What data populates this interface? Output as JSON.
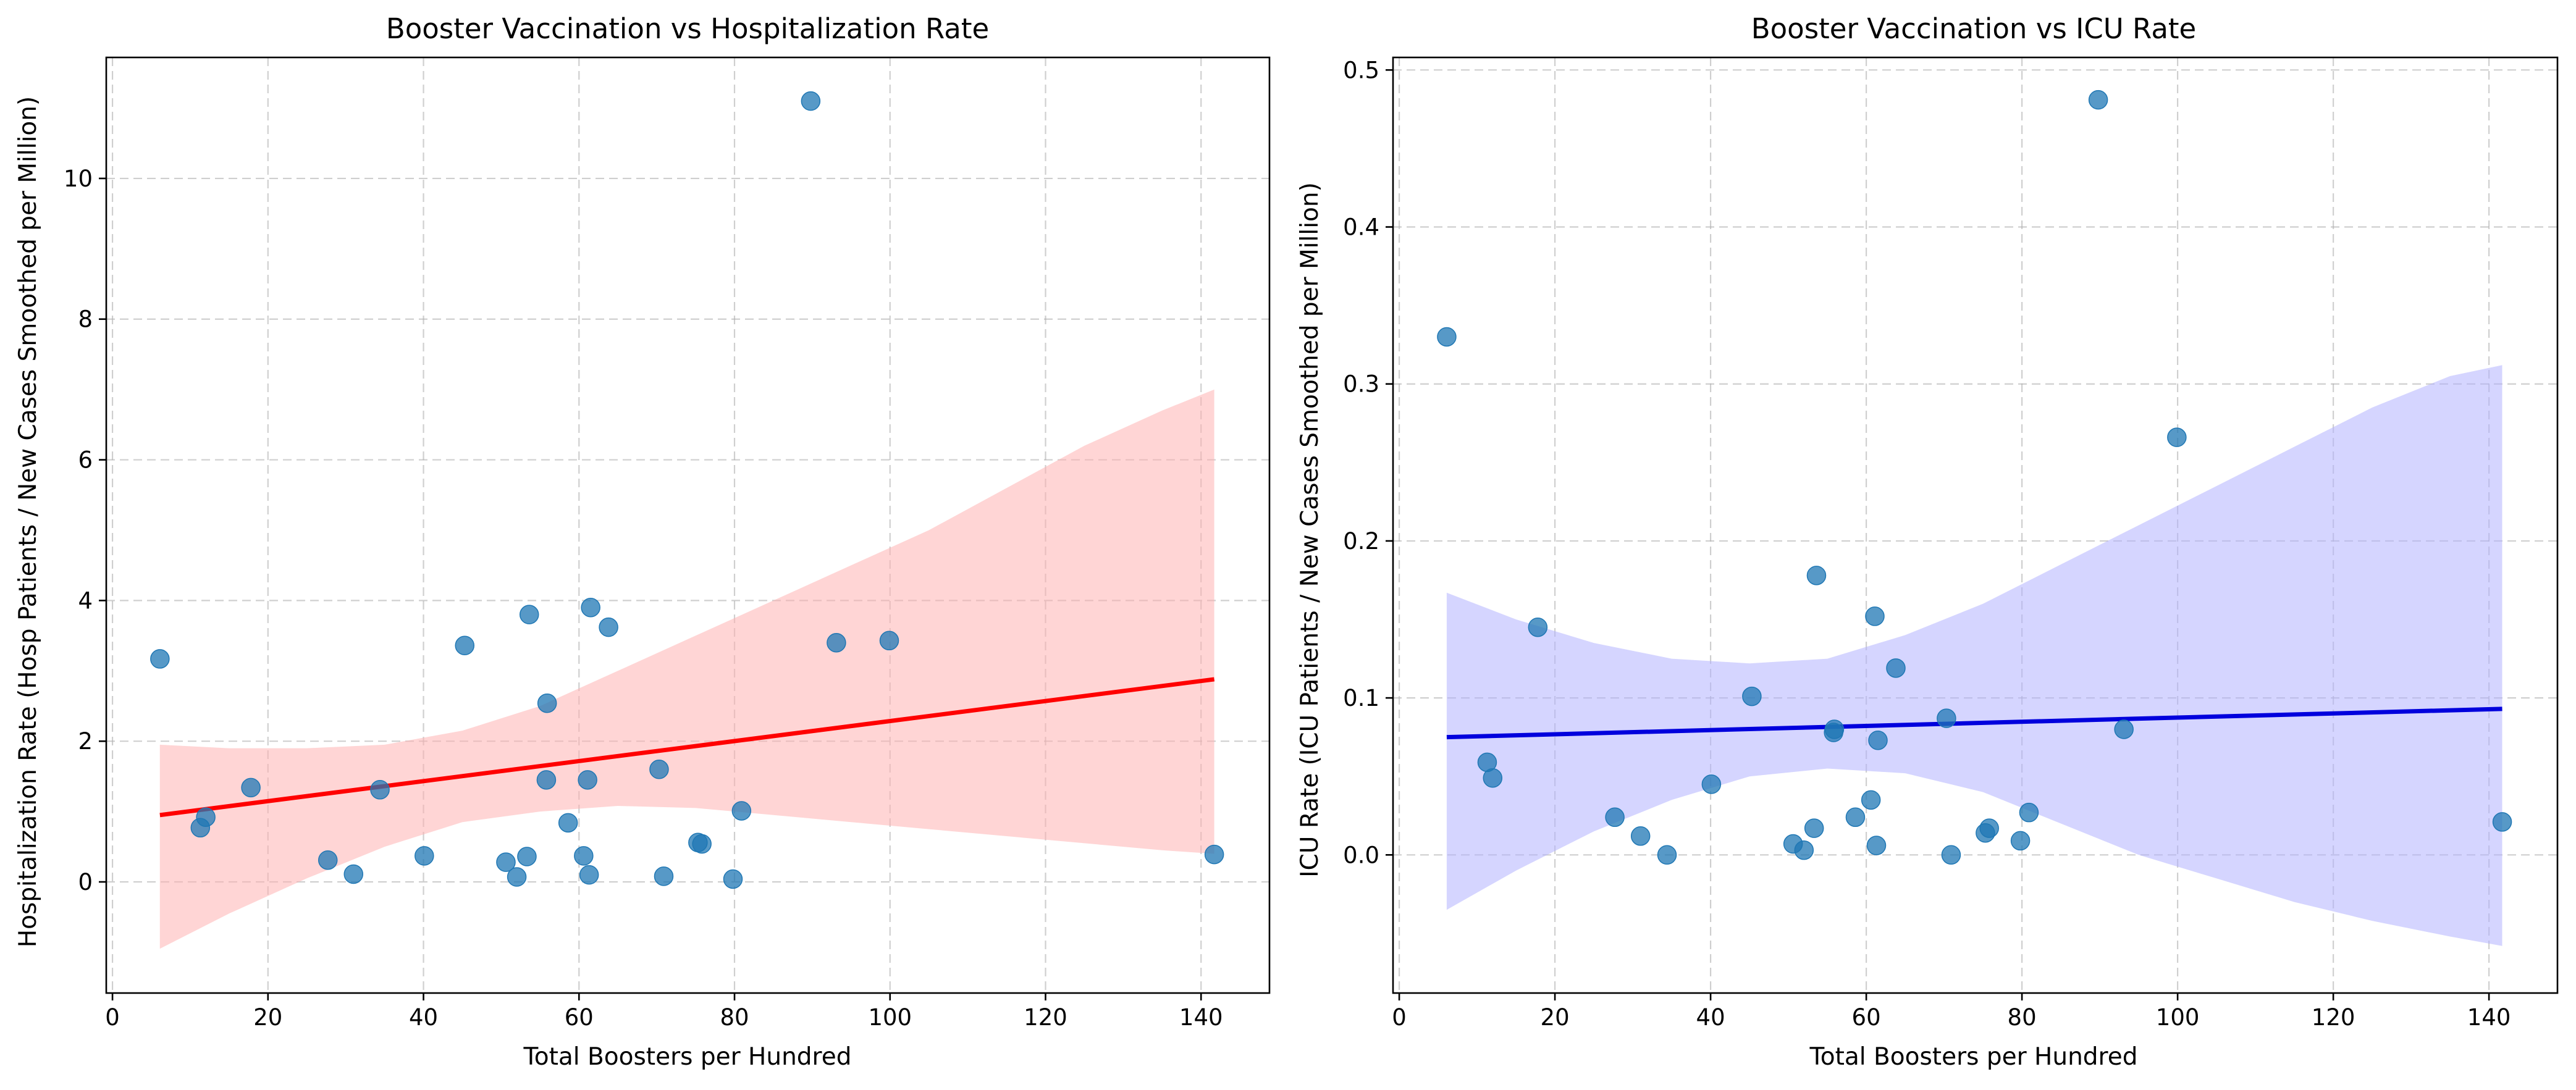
{
  "chart_data": [
    {
      "type": "scatter",
      "title": "Booster Vaccination vs Hospitalization Rate",
      "xlabel": "Total Boosters per Hundred",
      "ylabel": "Hospitalization Rate (Hosp Patients / New Cases Smoothed per Million)",
      "xlim": [
        -0.8,
        148.8
      ],
      "ylim": [
        -1.58,
        11.72
      ],
      "xticks": [
        0,
        20,
        40,
        60,
        80,
        100,
        120,
        140
      ],
      "yticks": [
        0,
        2,
        4,
        6,
        8,
        10
      ],
      "grid": true,
      "colors": {
        "points": "#1f77b4",
        "line": "#ff0000",
        "band": "#ffb3b3"
      },
      "points": [
        {
          "x": 6.1,
          "y": 3.17
        },
        {
          "x": 11.3,
          "y": 0.77
        },
        {
          "x": 12.0,
          "y": 0.92
        },
        {
          "x": 17.8,
          "y": 1.34
        },
        {
          "x": 27.7,
          "y": 0.31
        },
        {
          "x": 31.0,
          "y": 0.11
        },
        {
          "x": 34.4,
          "y": 1.31
        },
        {
          "x": 40.1,
          "y": 0.37
        },
        {
          "x": 45.3,
          "y": 3.36
        },
        {
          "x": 50.6,
          "y": 0.28
        },
        {
          "x": 52.0,
          "y": 0.07
        },
        {
          "x": 53.3,
          "y": 0.36
        },
        {
          "x": 53.6,
          "y": 3.8
        },
        {
          "x": 55.8,
          "y": 1.45
        },
        {
          "x": 55.9,
          "y": 2.54
        },
        {
          "x": 58.6,
          "y": 0.84
        },
        {
          "x": 60.6,
          "y": 0.37
        },
        {
          "x": 61.1,
          "y": 1.45
        },
        {
          "x": 61.3,
          "y": 0.1
        },
        {
          "x": 61.5,
          "y": 3.9
        },
        {
          "x": 63.8,
          "y": 3.62
        },
        {
          "x": 70.3,
          "y": 1.6
        },
        {
          "x": 70.9,
          "y": 0.08
        },
        {
          "x": 75.3,
          "y": 0.56
        },
        {
          "x": 75.8,
          "y": 0.54
        },
        {
          "x": 79.8,
          "y": 0.04
        },
        {
          "x": 80.9,
          "y": 1.01
        },
        {
          "x": 89.8,
          "y": 11.1
        },
        {
          "x": 93.1,
          "y": 3.4
        },
        {
          "x": 99.9,
          "y": 3.43
        },
        {
          "x": 141.7,
          "y": 0.39
        }
      ],
      "regression": {
        "x": [
          6.1,
          141.7
        ],
        "y": [
          0.95,
          2.88
        ]
      },
      "band": {
        "x": [
          6.1,
          15,
          25,
          35,
          45,
          55,
          65,
          75,
          85,
          95,
          105,
          115,
          125,
          135,
          141.7
        ],
        "lower": [
          -0.95,
          -0.45,
          0.05,
          0.5,
          0.85,
          1.0,
          1.08,
          1.05,
          0.95,
          0.85,
          0.75,
          0.65,
          0.55,
          0.45,
          0.4
        ],
        "upper": [
          1.95,
          1.9,
          1.9,
          1.95,
          2.15,
          2.5,
          3.0,
          3.5,
          4.0,
          4.5,
          5.0,
          5.6,
          6.2,
          6.7,
          7.0
        ]
      }
    },
    {
      "type": "scatter",
      "title": "Booster Vaccination vs ICU Rate",
      "xlabel": "Total Boosters per Hundred",
      "ylabel": "ICU Rate (ICU Patients / New Cases Smoothed per Million)",
      "xlim": [
        -0.8,
        148.8
      ],
      "ylim": [
        -0.088,
        0.508
      ],
      "xticks": [
        0,
        20,
        40,
        60,
        80,
        100,
        120,
        140
      ],
      "yticks": [
        0.0,
        0.1,
        0.2,
        0.3,
        0.4,
        0.5
      ],
      "grid": true,
      "colors": {
        "points": "#1f77b4",
        "line": "#0000dd",
        "band": "#b3b3ff"
      },
      "points": [
        {
          "x": 6.1,
          "y": 0.33
        },
        {
          "x": 11.3,
          "y": 0.059
        },
        {
          "x": 12.0,
          "y": 0.049
        },
        {
          "x": 17.8,
          "y": 0.145
        },
        {
          "x": 27.7,
          "y": 0.024
        },
        {
          "x": 31.0,
          "y": 0.012
        },
        {
          "x": 34.4,
          "y": 0.0
        },
        {
          "x": 40.1,
          "y": 0.045
        },
        {
          "x": 45.3,
          "y": 0.101
        },
        {
          "x": 50.6,
          "y": 0.007
        },
        {
          "x": 52.0,
          "y": 0.003
        },
        {
          "x": 53.3,
          "y": 0.017
        },
        {
          "x": 53.6,
          "y": 0.178
        },
        {
          "x": 55.8,
          "y": 0.078
        },
        {
          "x": 55.9,
          "y": 0.08
        },
        {
          "x": 58.6,
          "y": 0.024
        },
        {
          "x": 60.6,
          "y": 0.035
        },
        {
          "x": 61.1,
          "y": 0.152
        },
        {
          "x": 61.3,
          "y": 0.006
        },
        {
          "x": 61.5,
          "y": 0.073
        },
        {
          "x": 63.8,
          "y": 0.119
        },
        {
          "x": 70.3,
          "y": 0.087
        },
        {
          "x": 70.9,
          "y": 0.0
        },
        {
          "x": 75.3,
          "y": 0.014
        },
        {
          "x": 75.8,
          "y": 0.017
        },
        {
          "x": 79.8,
          "y": 0.009
        },
        {
          "x": 80.9,
          "y": 0.027
        },
        {
          "x": 89.8,
          "y": 0.481
        },
        {
          "x": 93.1,
          "y": 0.08
        },
        {
          "x": 99.9,
          "y": 0.266
        },
        {
          "x": 141.7,
          "y": 0.021
        }
      ],
      "regression": {
        "x": [
          6.1,
          141.7
        ],
        "y": [
          0.075,
          0.093
        ]
      },
      "band": {
        "x": [
          6.1,
          15,
          25,
          35,
          45,
          55,
          65,
          75,
          85,
          95,
          105,
          115,
          125,
          135,
          141.7
        ],
        "lower": [
          -0.035,
          -0.01,
          0.015,
          0.035,
          0.05,
          0.055,
          0.052,
          0.04,
          0.02,
          0.0,
          -0.015,
          -0.03,
          -0.042,
          -0.052,
          -0.058
        ],
        "upper": [
          0.167,
          0.15,
          0.135,
          0.125,
          0.122,
          0.125,
          0.14,
          0.16,
          0.185,
          0.21,
          0.235,
          0.26,
          0.285,
          0.305,
          0.312
        ]
      }
    }
  ]
}
